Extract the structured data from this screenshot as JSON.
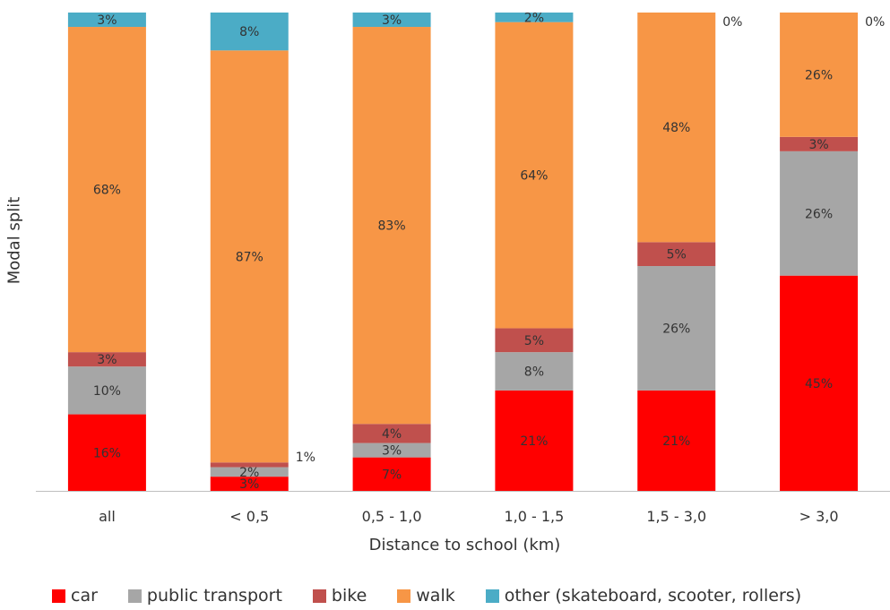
{
  "chart_data": {
    "type": "bar",
    "stacked": true,
    "title": "",
    "xlabel": "Distance to school (km)",
    "ylabel": "Modal split",
    "ylim": [
      0,
      100
    ],
    "categories": [
      "all",
      "< 0,5",
      "0,5 - 1,0",
      "1,0 - 1,5",
      "1,5 - 3,0",
      "> 3,0"
    ],
    "series": [
      {
        "name": "car",
        "color": "#ff0000",
        "values": [
          16,
          3,
          7,
          21,
          21,
          45
        ]
      },
      {
        "name": "public transport",
        "color": "#a6a6a6",
        "values": [
          10,
          2,
          3,
          8,
          26,
          26
        ]
      },
      {
        "name": "bike",
        "color": "#c0504d",
        "values": [
          3,
          1,
          4,
          5,
          5,
          3
        ]
      },
      {
        "name": "walk",
        "color": "#f79646",
        "values": [
          68,
          87,
          83,
          64,
          48,
          26
        ]
      },
      {
        "name": "other (skateboard, scooter, rollers)",
        "color": "#4bacc6",
        "values": [
          3,
          8,
          3,
          2,
          0,
          0
        ]
      }
    ],
    "data_labels": [
      [
        "16%",
        "3%",
        "7%",
        "21%",
        "21%",
        "45%"
      ],
      [
        "10%",
        "2%",
        "3%",
        "8%",
        "26%",
        "26%"
      ],
      [
        "3%",
        "1%",
        "4%",
        "5%",
        "5%",
        "3%"
      ],
      [
        "68%",
        "87%",
        "83%",
        "64%",
        "48%",
        "26%"
      ],
      [
        "3%",
        "8%",
        "3%",
        "2%",
        "0%",
        "0%"
      ]
    ],
    "legend_position": "bottom",
    "grid": false
  }
}
